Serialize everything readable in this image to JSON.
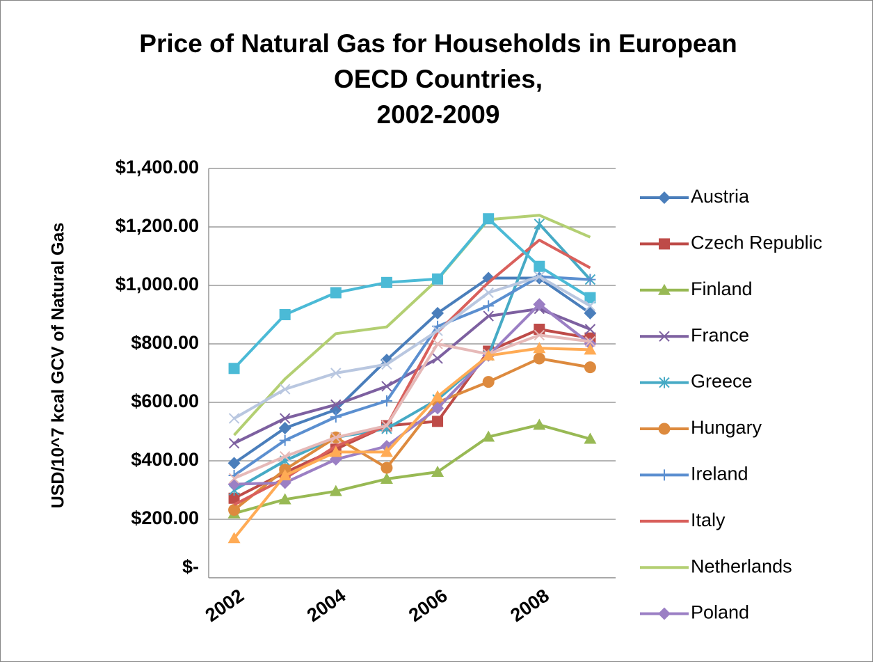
{
  "chart_data": {
    "type": "line",
    "title": [
      "Price of Natural Gas for Households in European",
      "OECD Countries,",
      "2002-2009"
    ],
    "y_label": "USD/10^7 kcal GCV of Natural Gas",
    "categories": [
      "2002",
      null,
      "2004",
      null,
      "2006",
      null,
      "2008",
      null
    ],
    "ylim": [
      0,
      1400
    ],
    "yticks": [
      {
        "value": 0,
        "label": "$-"
      },
      {
        "value": 200,
        "label": "$200.00"
      },
      {
        "value": 400,
        "label": "$400.00"
      },
      {
        "value": 600,
        "label": "$600.00"
      },
      {
        "value": 800,
        "label": "$800.00"
      },
      {
        "value": 1000,
        "label": "$1,000.00"
      },
      {
        "value": 1200,
        "label": "$1,200.00"
      },
      {
        "value": 1400,
        "label": "$1,400.00"
      }
    ],
    "grid": true,
    "legend": "right",
    "series": [
      {
        "name": "Austria",
        "color": "#4a7ebb",
        "marker": "diamond",
        "values": [
          392,
          512,
          575,
          745,
          905,
          1025,
          1025,
          905
        ]
      },
      {
        "name": "Czech Republic",
        "color": "#be4b48",
        "marker": "square",
        "values": [
          272,
          360,
          440,
          520,
          535,
          775,
          850,
          820
        ]
      },
      {
        "name": "Finland",
        "color": "#98b954",
        "marker": "triangle",
        "values": [
          220,
          268,
          296,
          338,
          362,
          482,
          523,
          475
        ]
      },
      {
        "name": "France",
        "color": "#7d60a0",
        "marker": "x",
        "values": [
          460,
          545,
          592,
          655,
          750,
          895,
          920,
          850
        ]
      },
      {
        "name": "Greece",
        "color": "#46aac5",
        "marker": "star",
        "values": [
          300,
          400,
          480,
          510,
          610,
          760,
          1210,
          1020
        ]
      },
      {
        "name": "Hungary",
        "color": "#dd8a3e",
        "marker": "circle",
        "values": [
          232,
          370,
          480,
          376,
          600,
          670,
          750,
          720
        ]
      },
      {
        "name": "Ireland",
        "color": "#5b8fd0",
        "marker": "plus",
        "values": [
          350,
          470,
          550,
          605,
          860,
          930,
          1030,
          1020
        ]
      },
      {
        "name": "Italy",
        "color": "#d9605c",
        "marker": "none",
        "values": [
          250,
          340,
          450,
          520,
          840,
          1010,
          1155,
          1060
        ]
      },
      {
        "name": "Netherlands",
        "color": "#b3cf72",
        "marker": "none",
        "values": [
          488,
          680,
          835,
          858,
          1020,
          1225,
          1240,
          1165
        ]
      },
      {
        "name": "Poland",
        "color": "#9b7fc4",
        "marker": "diamond",
        "values": [
          320,
          325,
          405,
          450,
          580,
          760,
          935,
          800
        ]
      },
      {
        "color": "#4bbad6",
        "marker": "square",
        "values": [
          716,
          900,
          975,
          1010,
          1022,
          1228,
          1065,
          958
        ]
      },
      {
        "color": "#b9c7e0",
        "marker": "x",
        "values": [
          545,
          645,
          700,
          730,
          845,
          975,
          1030,
          930
        ]
      },
      {
        "color": "#e6b9b8",
        "marker": "x",
        "values": [
          340,
          415,
          480,
          520,
          800,
          765,
          830,
          808
        ]
      },
      {
        "color": "#ffab55",
        "marker": "triangle",
        "values": [
          135,
          350,
          430,
          430,
          620,
          760,
          785,
          780
        ]
      }
    ]
  }
}
